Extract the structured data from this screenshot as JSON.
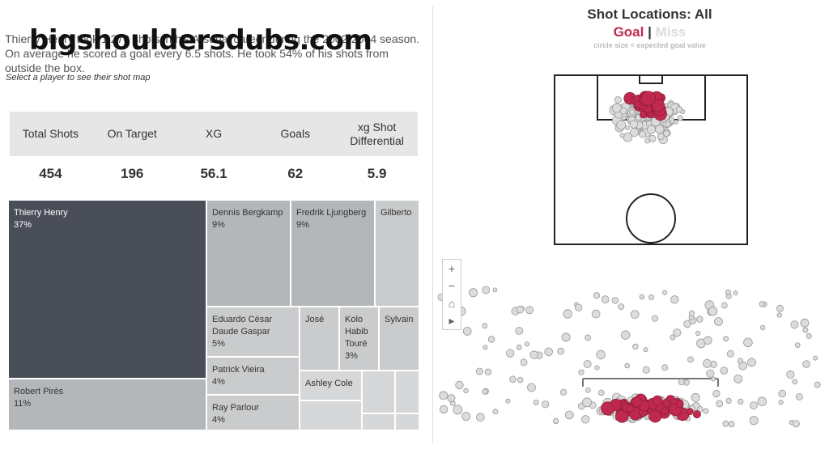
{
  "watermark": "bigshouldersdubs.com",
  "intro": {
    "text": "Thierry Henry took 1,270 shots in his Arsenal career during the 2002-2004 season. On average he scored a goal every 6.5 shots. He took 54% of his shots from outside the box.",
    "hint": "Select a player to see their shot map"
  },
  "kpis": [
    {
      "label": "Total Shots",
      "value": "454"
    },
    {
      "label": "On Target",
      "value": "196"
    },
    {
      "label": "XG",
      "value": "56.1"
    },
    {
      "label": "Goals",
      "value": "62"
    },
    {
      "label": "xg Shot\nDifferential",
      "value": "5.9"
    }
  ],
  "treemap": [
    {
      "name": "Thierry Henry",
      "pct": "37%"
    },
    {
      "name": "Robert Pirès",
      "pct": "11%"
    },
    {
      "name": "Dennis Bergkamp",
      "pct": "9%"
    },
    {
      "name": "Fredrik Ljungberg",
      "pct": "9%"
    },
    {
      "name": "Gilberto",
      "pct": ""
    },
    {
      "name": "Eduardo César\nDaude Gaspar",
      "pct": "5%"
    },
    {
      "name": "José",
      "pct": ""
    },
    {
      "name": "Kolo\nHabib\nTouré",
      "pct": "3%"
    },
    {
      "name": "Sylvain",
      "pct": ""
    },
    {
      "name": "Patrick Vieira",
      "pct": "4%"
    },
    {
      "name": "Ashley Cole",
      "pct": ""
    },
    {
      "name": "Ray Parlour",
      "pct": "4%"
    },
    {
      "name": "",
      "pct": ""
    },
    {
      "name": "",
      "pct": ""
    },
    {
      "name": "",
      "pct": ""
    },
    {
      "name": "",
      "pct": ""
    },
    {
      "name": "",
      "pct": ""
    }
  ],
  "map": {
    "title": "Shot Locations: All",
    "goal_label": "Goal",
    "separator": "|",
    "miss_label": "Miss",
    "note": "circle size = expected goal value",
    "goal_color": "#c0294e",
    "miss_color": "#dcdcdc"
  },
  "controls": [
    {
      "name": "zoom-in-icon",
      "glyph": "+"
    },
    {
      "name": "zoom-out-icon",
      "glyph": "−"
    },
    {
      "name": "home-icon",
      "glyph": "⌂"
    },
    {
      "name": "play-icon",
      "glyph": "▸"
    }
  ]
}
